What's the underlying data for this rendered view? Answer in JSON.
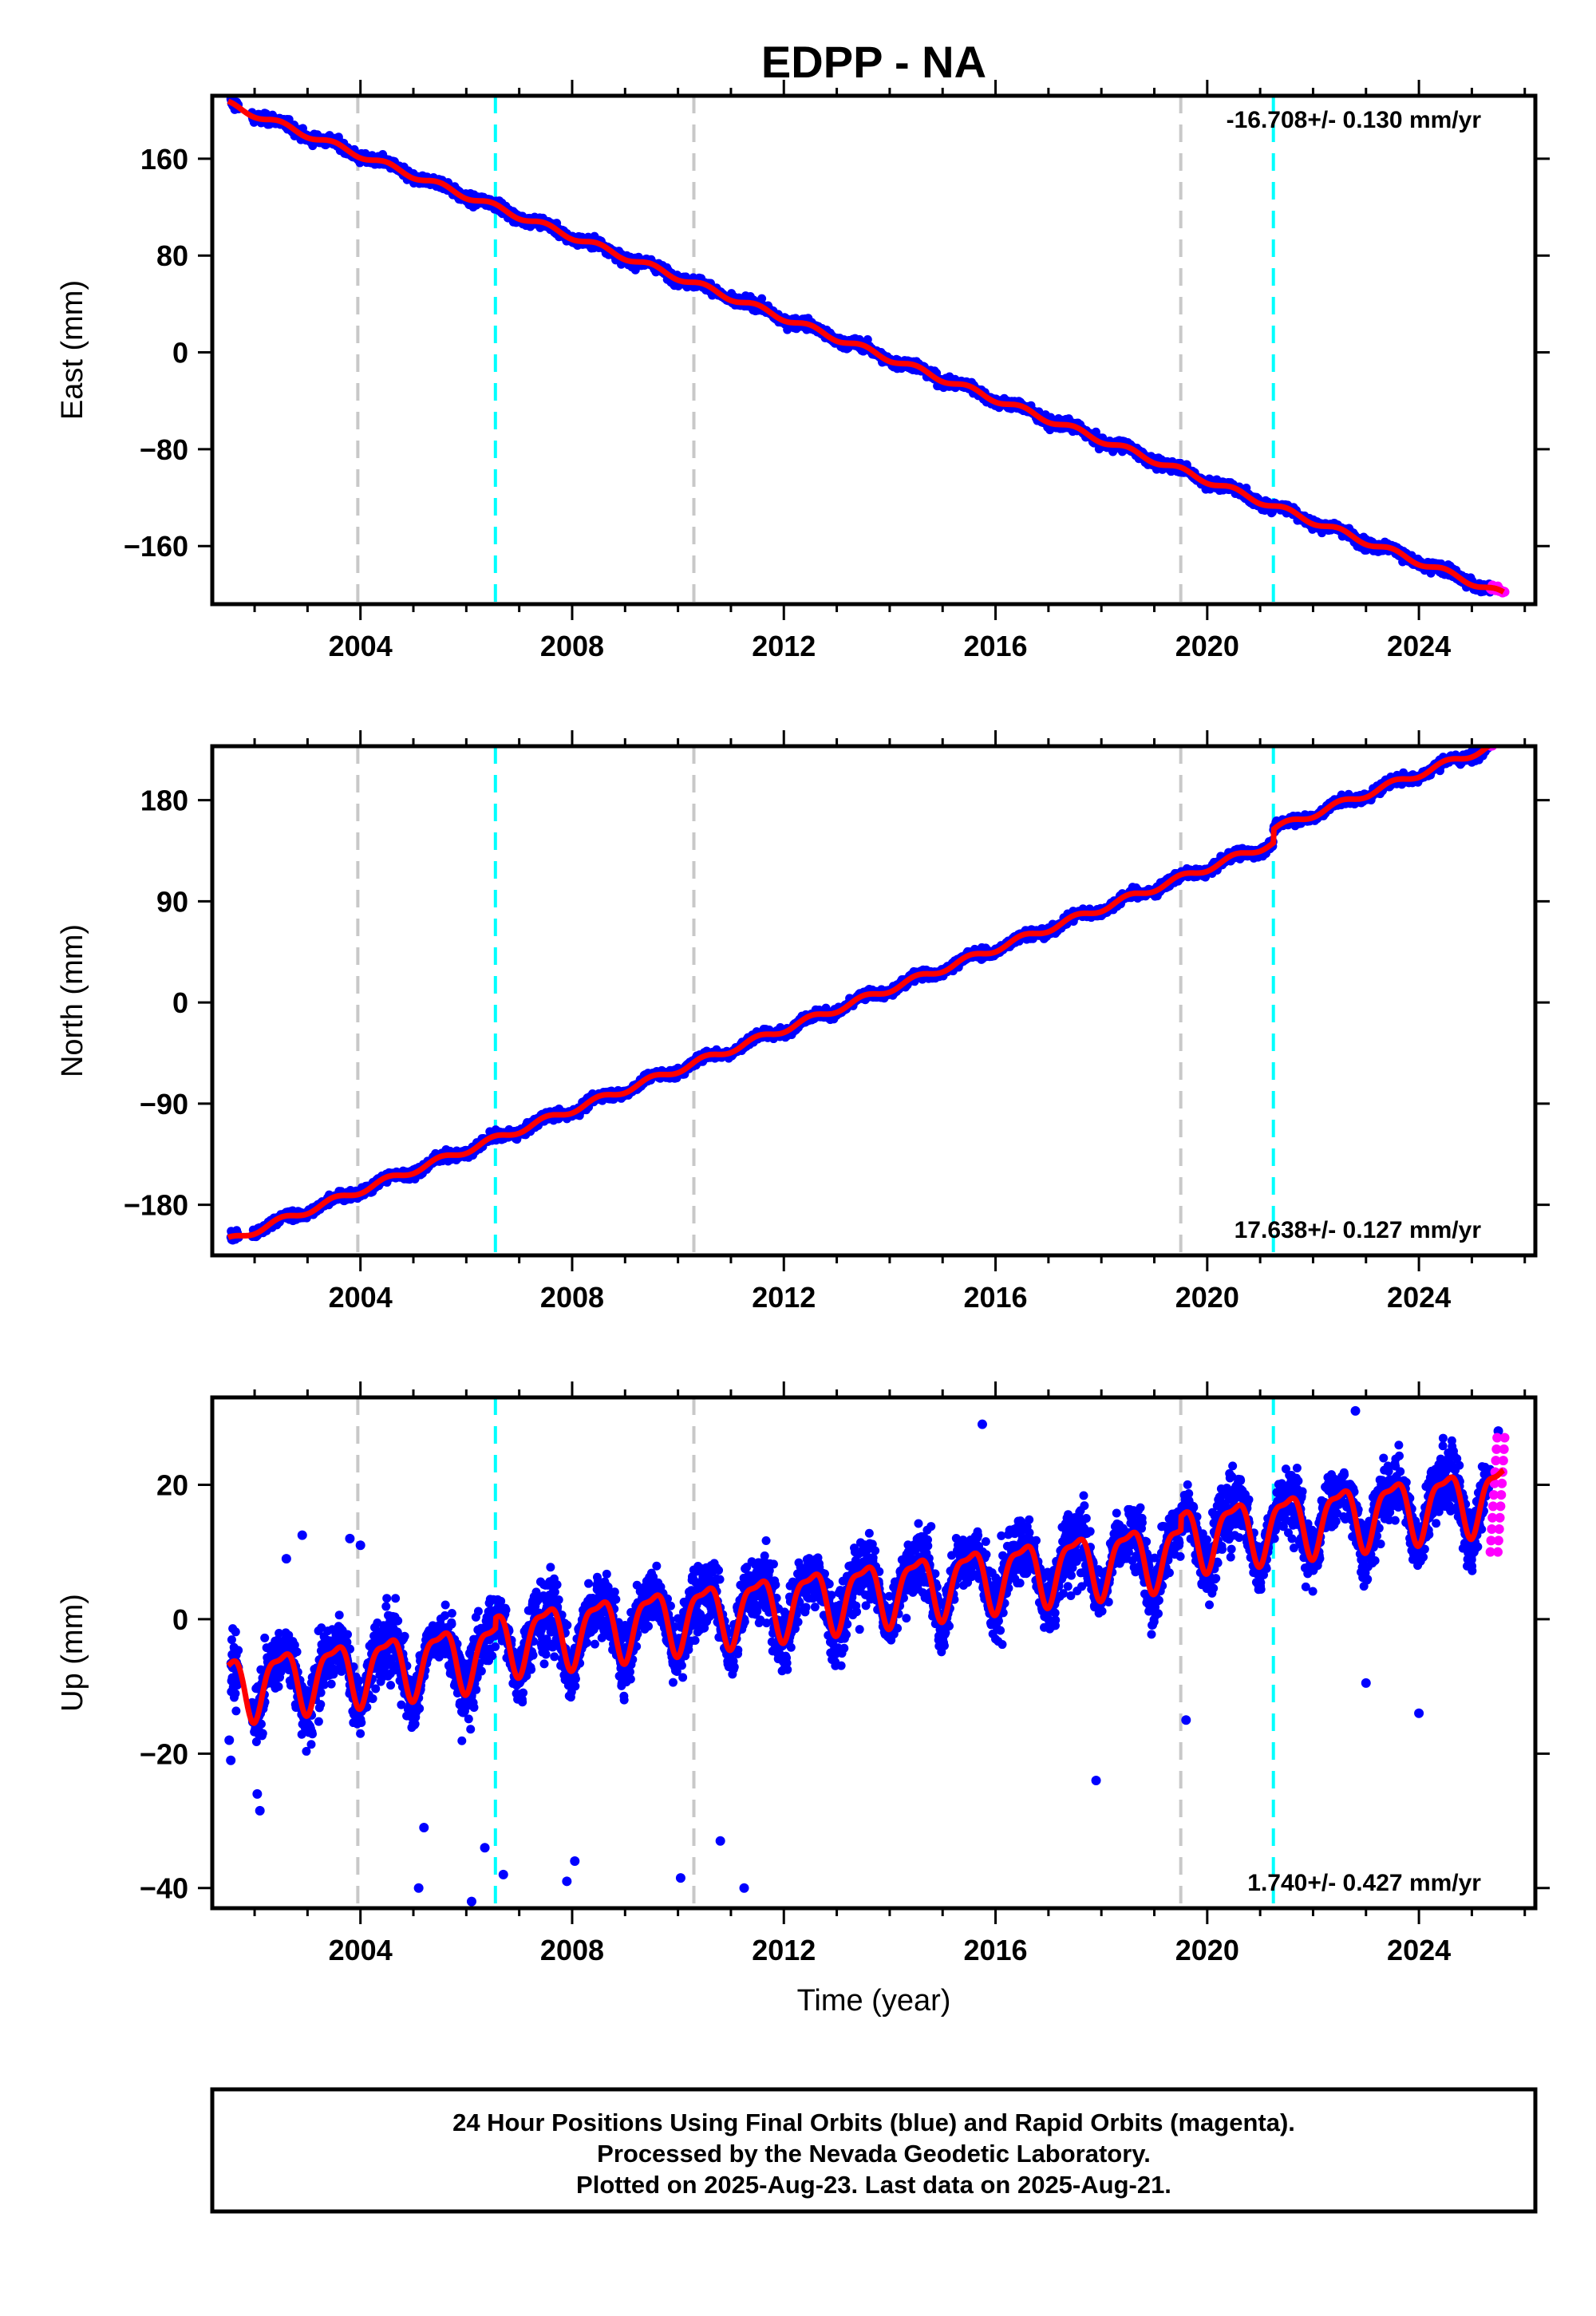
{
  "title": "EDPP - NA",
  "colors": {
    "final_orbits": "#0000ff",
    "rapid_orbits": "#ff00ff",
    "model_fit": "#ff0000",
    "equipment_change": "#c8c8c8",
    "earthquake": "#00ffff"
  },
  "footer": {
    "line1": "24 Hour Positions Using Final Orbits (blue) and Rapid Orbits (magenta).",
    "line2": "Processed by the Nevada Geodetic Laboratory.",
    "line3": "Plotted on 2025-Aug-23. Last data on 2025-Aug-21."
  },
  "chart_data": [
    {
      "type": "scatter",
      "name": "east",
      "ylabel": "East (mm)",
      "xlabel": "",
      "xlim": [
        2001.2,
        2026.2
      ],
      "ylim": [
        -208,
        212
      ],
      "x_ticks": [
        2004,
        2008,
        2012,
        2016,
        2020,
        2024
      ],
      "y_ticks": [
        160,
        80,
        0,
        -80,
        -160
      ],
      "y_tick_labels": [
        "160",
        "80",
        "0",
        "−80",
        "−160"
      ],
      "rate_text": "-16.708+/- 0.130 mm/yr",
      "rate_position": "top-right",
      "equipment_change_lines": [
        2003.95,
        2010.3,
        2019.5
      ],
      "earthquake_lines": [
        2006.55,
        2021.25
      ],
      "trend": {
        "y_at_2001_5": 205,
        "y_at_2025_6": -200
      },
      "seasonal_amplitude": 2.5,
      "scatter_noise": 3,
      "rapid_orbit_range": [
        2025.35,
        2025.62
      ],
      "offsets": []
    },
    {
      "type": "scatter",
      "name": "north",
      "ylabel": "North (mm)",
      "xlabel": "",
      "xlim": [
        2001.2,
        2026.2
      ],
      "ylim": [
        -225,
        228
      ],
      "x_ticks": [
        2004,
        2008,
        2012,
        2016,
        2020,
        2024
      ],
      "y_ticks": [
        180,
        90,
        0,
        -90,
        -180
      ],
      "y_tick_labels": [
        "180",
        "90",
        "0",
        "−90",
        "−180"
      ],
      "rate_text": "17.638+/- 0.127 mm/yr",
      "rate_position": "bottom-right",
      "equipment_change_lines": [
        2003.95,
        2010.3,
        2019.5
      ],
      "earthquake_lines": [
        2006.55,
        2021.25
      ],
      "trend": {
        "y_at_2001_5": -212,
        "y_at_2025_6": 220
      },
      "seasonal_amplitude": 3,
      "scatter_noise": 3,
      "rapid_orbit_range": [
        2025.35,
        2025.62
      ],
      "offsets": [
        {
          "x": 2021.25,
          "dy": 12
        }
      ]
    },
    {
      "type": "scatter",
      "name": "up",
      "ylabel": "Up (mm)",
      "xlabel": "Time (year)",
      "xlim": [
        2001.2,
        2026.2
      ],
      "ylim": [
        -43,
        33
      ],
      "x_ticks": [
        2004,
        2008,
        2012,
        2016,
        2020,
        2024
      ],
      "y_ticks": [
        20,
        0,
        -20,
        -40
      ],
      "y_tick_labels": [
        "20",
        "0",
        "−20",
        "−40"
      ],
      "rate_text": "1.740+/- 0.427 mm/yr",
      "rate_position": "bottom-right",
      "equipment_change_lines": [
        2003.95,
        2010.3,
        2019.5
      ],
      "earthquake_lines": [
        2006.55,
        2021.25
      ],
      "trend": {
        "y_at_2001_5": -10,
        "y_at_2025_6": 15
      },
      "seasonal_amplitude": 4.5,
      "scatter_noise": 4,
      "rapid_orbit_range": [
        2025.35,
        2025.62
      ],
      "outliers": [
        [
          2001.52,
          -18
        ],
        [
          2001.55,
          -21
        ],
        [
          2002.05,
          -26
        ],
        [
          2002.1,
          -28.5
        ],
        [
          2002.6,
          9
        ],
        [
          2002.9,
          12.5
        ],
        [
          2003.8,
          12
        ],
        [
          2004.0,
          11
        ],
        [
          2005.1,
          -40
        ],
        [
          2005.2,
          -31
        ],
        [
          2006.1,
          -42
        ],
        [
          2006.35,
          -34
        ],
        [
          2006.7,
          -38
        ],
        [
          2007.9,
          -39
        ],
        [
          2008.05,
          -36
        ],
        [
          2010.05,
          -38.5
        ],
        [
          2010.8,
          -33
        ],
        [
          2011.25,
          -40
        ],
        [
          2015.75,
          29
        ],
        [
          2017.9,
          -24
        ],
        [
          2019.6,
          -15
        ],
        [
          2022.8,
          31
        ],
        [
          2023.0,
          -9.5
        ],
        [
          2024.0,
          -14
        ],
        [
          2025.5,
          28
        ]
      ],
      "offsets": [
        {
          "x": 2006.55,
          "dy": 1.5
        },
        {
          "x": 2019.5,
          "dy": 2
        }
      ]
    }
  ]
}
